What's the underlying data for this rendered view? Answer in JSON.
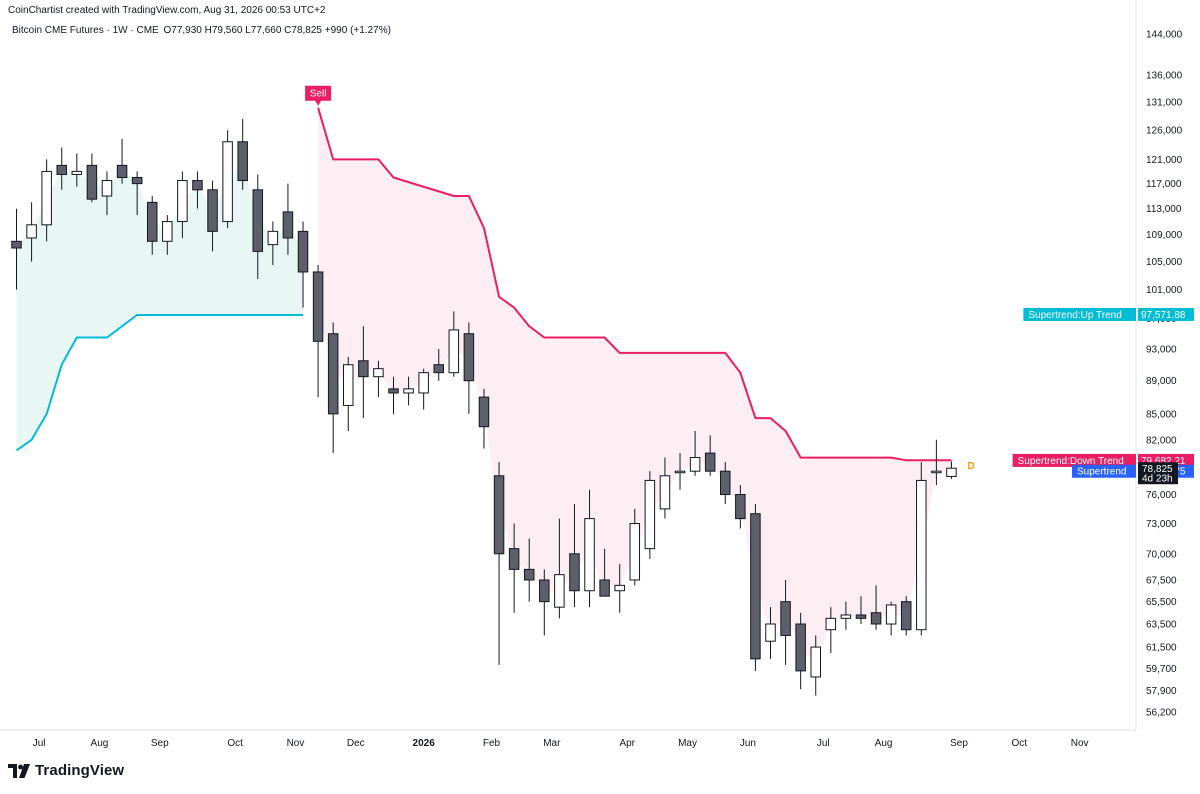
{
  "header": {
    "creator": "CoinChartist created with TradingView.com, Aug 31, 2026 00:53 UTC+2",
    "symbol": "Bitcoin CME Futures · 1W · CME",
    "open": "O77,930",
    "high": "H79,560",
    "low": "L77,660",
    "close": "C78,825",
    "change": "+990 (+1.27%)"
  },
  "brand": {
    "name": "TradingView",
    "icon": "tradingview-logo-icon"
  },
  "colors": {
    "up_trend": "#00bcd4",
    "down_trend": "#e91e63",
    "up_fill": "#e8f7f4",
    "down_fill": "#fdeef3",
    "bear_candle": "#5d606b",
    "bull_candle": "#ffffff",
    "supertrend_label": "#2962ff",
    "last_price": "#131722",
    "signal_d": "#ff9800"
  },
  "chart_data": {
    "type": "candlestick",
    "title": "Bitcoin CME Futures · 1W · CME",
    "y_axis": {
      "ticks": [
        56200,
        57900,
        59700,
        61500,
        63500,
        65500,
        67500,
        70000,
        73000,
        76000,
        82000,
        85000,
        89000,
        93000,
        97000,
        101000,
        105000,
        109000,
        113000,
        117000,
        121000,
        126000,
        131000,
        136000,
        144000
      ],
      "tick_labels": [
        "56,200",
        "57,900",
        "59,700",
        "61,500",
        "63,500",
        "65,500",
        "67,500",
        "70,000",
        "73,000",
        "76,000",
        "82,000",
        "85,000",
        "89,000",
        "93,000",
        "97,000",
        "101,000",
        "105,000",
        "109,000",
        "113,000",
        "117,000",
        "121,000",
        "126,000",
        "131,000",
        "136,000",
        "144,000"
      ],
      "scale": "log",
      "range": [
        54600,
        147000
      ]
    },
    "x_axis": {
      "labels": [
        {
          "text": "Jul",
          "index": 1.5
        },
        {
          "text": "Aug",
          "index": 5.5
        },
        {
          "text": "Sep",
          "index": 9.5
        },
        {
          "text": "Oct",
          "index": 14.5
        },
        {
          "text": "Nov",
          "index": 18.5
        },
        {
          "text": "Dec",
          "index": 22.5
        },
        {
          "text": "2026",
          "index": 27,
          "bold": true
        },
        {
          "text": "Feb",
          "index": 31.5
        },
        {
          "text": "Mar",
          "index": 35.5
        },
        {
          "text": "Apr",
          "index": 40.5
        },
        {
          "text": "May",
          "index": 44.5
        },
        {
          "text": "Jun",
          "index": 48.5
        },
        {
          "text": "Jul",
          "index": 53.5
        },
        {
          "text": "Aug",
          "index": 57.5
        },
        {
          "text": "Sep",
          "index": 62.5
        },
        {
          "text": "Oct",
          "index": 66.5
        },
        {
          "text": "Nov",
          "index": 70.5
        }
      ]
    },
    "candles": [
      {
        "i": 0,
        "o": 108000,
        "h": 113000,
        "l": 101000,
        "c": 107000
      },
      {
        "i": 1,
        "o": 108500,
        "h": 114000,
        "l": 105000,
        "c": 110500
      },
      {
        "i": 2,
        "o": 110500,
        "h": 121000,
        "l": 108000,
        "c": 119000
      },
      {
        "i": 3,
        "o": 120000,
        "h": 123000,
        "l": 116000,
        "c": 118500
      },
      {
        "i": 4,
        "o": 118500,
        "h": 122000,
        "l": 116500,
        "c": 119000
      },
      {
        "i": 5,
        "o": 120000,
        "h": 122000,
        "l": 114000,
        "c": 114500
      },
      {
        "i": 6,
        "o": 115000,
        "h": 119000,
        "l": 112000,
        "c": 117500
      },
      {
        "i": 7,
        "o": 120000,
        "h": 124500,
        "l": 117000,
        "c": 118000
      },
      {
        "i": 8,
        "o": 118000,
        "h": 119000,
        "l": 112000,
        "c": 117000
      },
      {
        "i": 9,
        "o": 114000,
        "h": 115000,
        "l": 106000,
        "c": 108000
      },
      {
        "i": 10,
        "o": 108000,
        "h": 112000,
        "l": 106000,
        "c": 111000
      },
      {
        "i": 11,
        "o": 111000,
        "h": 119000,
        "l": 108500,
        "c": 117500
      },
      {
        "i": 12,
        "o": 117500,
        "h": 119000,
        "l": 113000,
        "c": 116000
      },
      {
        "i": 13,
        "o": 116000,
        "h": 117500,
        "l": 106500,
        "c": 109500
      },
      {
        "i": 14,
        "o": 111000,
        "h": 126000,
        "l": 110000,
        "c": 124000
      },
      {
        "i": 15,
        "o": 124000,
        "h": 128000,
        "l": 116000,
        "c": 117500
      },
      {
        "i": 16,
        "o": 116000,
        "h": 118500,
        "l": 102500,
        "c": 106500
      },
      {
        "i": 17,
        "o": 107500,
        "h": 111000,
        "l": 104500,
        "c": 109500
      },
      {
        "i": 18,
        "o": 112500,
        "h": 117000,
        "l": 106000,
        "c": 108500
      },
      {
        "i": 19,
        "o": 109500,
        "h": 111000,
        "l": 98500,
        "c": 103500
      },
      {
        "i": 20,
        "o": 103500,
        "h": 104500,
        "l": 87000,
        "c": 94000
      },
      {
        "i": 21,
        "o": 95000,
        "h": 96500,
        "l": 80500,
        "c": 85000
      },
      {
        "i": 22,
        "o": 86000,
        "h": 92000,
        "l": 83000,
        "c": 91000
      },
      {
        "i": 23,
        "o": 91500,
        "h": 96000,
        "l": 84500,
        "c": 89500
      },
      {
        "i": 24,
        "o": 89500,
        "h": 91500,
        "l": 87000,
        "c": 90500
      },
      {
        "i": 25,
        "o": 88000,
        "h": 89500,
        "l": 85000,
        "c": 87500
      },
      {
        "i": 26,
        "o": 87500,
        "h": 89500,
        "l": 86000,
        "c": 88000
      },
      {
        "i": 27,
        "o": 87500,
        "h": 90500,
        "l": 85500,
        "c": 90000
      },
      {
        "i": 28,
        "o": 91000,
        "h": 93000,
        "l": 89000,
        "c": 90000
      },
      {
        "i": 29,
        "o": 90000,
        "h": 98000,
        "l": 89500,
        "c": 95500
      },
      {
        "i": 30,
        "o": 95000,
        "h": 96500,
        "l": 85000,
        "c": 89000
      },
      {
        "i": 31,
        "o": 87000,
        "h": 88000,
        "l": 81000,
        "c": 83500
      },
      {
        "i": 32,
        "o": 78000,
        "h": 79500,
        "l": 60000,
        "c": 70000
      },
      {
        "i": 33,
        "o": 70500,
        "h": 73000,
        "l": 64500,
        "c": 68500
      },
      {
        "i": 34,
        "o": 68500,
        "h": 71500,
        "l": 65500,
        "c": 67500
      },
      {
        "i": 35,
        "o": 67500,
        "h": 68500,
        "l": 62500,
        "c": 65500
      },
      {
        "i": 36,
        "o": 65000,
        "h": 73500,
        "l": 64000,
        "c": 68000
      },
      {
        "i": 37,
        "o": 70000,
        "h": 75000,
        "l": 65000,
        "c": 66500
      },
      {
        "i": 38,
        "o": 66500,
        "h": 76500,
        "l": 65000,
        "c": 73500
      },
      {
        "i": 39,
        "o": 67500,
        "h": 70500,
        "l": 66000,
        "c": 66000
      },
      {
        "i": 40,
        "o": 66500,
        "h": 69000,
        "l": 64500,
        "c": 67000
      },
      {
        "i": 41,
        "o": 67500,
        "h": 74500,
        "l": 67000,
        "c": 73000
      },
      {
        "i": 42,
        "o": 70500,
        "h": 78500,
        "l": 69500,
        "c": 77500
      },
      {
        "i": 43,
        "o": 74500,
        "h": 80000,
        "l": 73500,
        "c": 78000
      },
      {
        "i": 44,
        "o": 78500,
        "h": 80500,
        "l": 76500,
        "c": 78500
      },
      {
        "i": 45,
        "o": 78500,
        "h": 83000,
        "l": 78000,
        "c": 80000
      },
      {
        "i": 46,
        "o": 80500,
        "h": 82500,
        "l": 78000,
        "c": 78500
      },
      {
        "i": 47,
        "o": 78500,
        "h": 79500,
        "l": 75000,
        "c": 76000
      },
      {
        "i": 48,
        "o": 76000,
        "h": 77000,
        "l": 72500,
        "c": 73500
      },
      {
        "i": 49,
        "o": 74000,
        "h": 75000,
        "l": 59500,
        "c": 60500
      },
      {
        "i": 50,
        "o": 62000,
        "h": 65000,
        "l": 60500,
        "c": 63500
      },
      {
        "i": 51,
        "o": 65500,
        "h": 67500,
        "l": 60000,
        "c": 62500
      },
      {
        "i": 52,
        "o": 63500,
        "h": 64500,
        "l": 58000,
        "c": 59500
      },
      {
        "i": 53,
        "o": 59000,
        "h": 62500,
        "l": 57500,
        "c": 61500
      },
      {
        "i": 54,
        "o": 63000,
        "h": 65000,
        "l": 61000,
        "c": 64000
      },
      {
        "i": 55,
        "o": 64000,
        "h": 65500,
        "l": 63000,
        "c": 64300
      },
      {
        "i": 56,
        "o": 64300,
        "h": 66000,
        "l": 63500,
        "c": 64000
      },
      {
        "i": 57,
        "o": 64500,
        "h": 67000,
        "l": 63000,
        "c": 63500
      },
      {
        "i": 58,
        "o": 63500,
        "h": 65500,
        "l": 62500,
        "c": 65200
      },
      {
        "i": 59,
        "o": 65500,
        "h": 66000,
        "l": 62500,
        "c": 63000
      },
      {
        "i": 60,
        "o": 63000,
        "h": 79500,
        "l": 62500,
        "c": 77500
      },
      {
        "i": 61,
        "o": 78500,
        "h": 82000,
        "l": 77000,
        "c": 78500
      },
      {
        "i": 62,
        "o": 77930,
        "h": 79560,
        "l": 77660,
        "c": 78825
      }
    ],
    "supertrend_up": [
      {
        "i": 0,
        "v": 80800
      },
      {
        "i": 1,
        "v": 82000
      },
      {
        "i": 2,
        "v": 85000
      },
      {
        "i": 3,
        "v": 91000
      },
      {
        "i": 4,
        "v": 94500
      },
      {
        "i": 6,
        "v": 94500
      },
      {
        "i": 8,
        "v": 97500
      },
      {
        "i": 19,
        "v": 97500
      }
    ],
    "supertrend_down": [
      {
        "i": 20,
        "v": 130000
      },
      {
        "i": 21,
        "v": 121000
      },
      {
        "i": 24,
        "v": 121000
      },
      {
        "i": 25,
        "v": 118000
      },
      {
        "i": 29,
        "v": 115000
      },
      {
        "i": 30,
        "v": 115000
      },
      {
        "i": 31,
        "v": 110000
      },
      {
        "i": 32,
        "v": 100000
      },
      {
        "i": 33,
        "v": 98500
      },
      {
        "i": 34,
        "v": 96000
      },
      {
        "i": 35,
        "v": 94500
      },
      {
        "i": 39,
        "v": 94500
      },
      {
        "i": 40,
        "v": 92500
      },
      {
        "i": 47,
        "v": 92500
      },
      {
        "i": 48,
        "v": 90000
      },
      {
        "i": 49,
        "v": 84500
      },
      {
        "i": 50,
        "v": 84500
      },
      {
        "i": 51,
        "v": 83000
      },
      {
        "i": 52,
        "v": 80000
      },
      {
        "i": 58,
        "v": 80000
      },
      {
        "i": 59,
        "v": 79700
      },
      {
        "i": 62,
        "v": 79700
      }
    ],
    "signals": [
      {
        "text": "Sell",
        "i": 20,
        "v": 130000
      }
    ],
    "price_tags": [
      {
        "text": "Supertrend:Up Trend",
        "value_text": "97,571.88",
        "v": 97571.88,
        "color_key": "up_trend"
      },
      {
        "text": "Supertrend:Down Trend",
        "value_text": "79,682.21",
        "v": 79682.21,
        "color_key": "down_trend"
      },
      {
        "text": "Supertrend",
        "value_text": "78,493.75",
        "v": 78493.75,
        "color_key": "supertrend_label"
      }
    ],
    "last_price": {
      "value_text": "78,825",
      "countdown": "4d 23h",
      "v": 78825
    },
    "marker_d": {
      "text": "D",
      "i": 63.3,
      "v": 78825
    }
  }
}
